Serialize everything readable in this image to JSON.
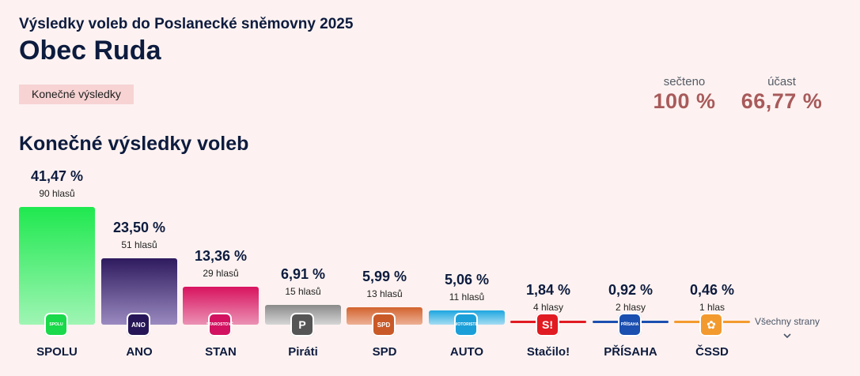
{
  "header": {
    "subtitle": "Výsledky voleb do Poslanecké sněmovny 2025",
    "title": "Obec Ruda",
    "badge": "Konečné výsledky"
  },
  "stats": {
    "counted_label": "sečteno",
    "counted_value": "100 %",
    "turnout_label": "účast",
    "turnout_value": "66,77 %"
  },
  "section_title": "Konečné výsledky voleb",
  "chart_data": {
    "type": "bar",
    "title": "Konečné výsledky voleb",
    "categories": [
      "SPOLU",
      "ANO",
      "STAN",
      "Piráti",
      "SPD",
      "AUTO",
      "Stačilo!",
      "PŘÍSAHA",
      "ČSSD"
    ],
    "values": [
      41.47,
      23.5,
      13.36,
      6.91,
      5.99,
      5.06,
      1.84,
      0.92,
      0.46
    ],
    "unit": "%"
  },
  "parties": [
    {
      "name": "SPOLU",
      "pct": "41,47 %",
      "votes": "90 hlasů",
      "value": 41.47,
      "color_top": "#1fe84f",
      "color_bottom": "#9ff5b4",
      "logo_text": "SPOLU",
      "logo_color": "#1ad94a",
      "icon": "spolu-logo-icon"
    },
    {
      "name": "ANO",
      "pct": "23,50 %",
      "votes": "51 hlasů",
      "value": 23.5,
      "color_top": "#2e1a5e",
      "color_bottom": "#9a8ac0",
      "logo_text": "ANO",
      "logo_color": "#271657",
      "icon": "ano-logo-icon"
    },
    {
      "name": "STAN",
      "pct": "13,36 %",
      "votes": "29 hlasů",
      "value": 13.36,
      "color_top": "#d8135f",
      "color_bottom": "#eb91b4",
      "logo_text": "STAROSTOVÉ",
      "logo_color": "#d21260",
      "icon": "stan-logo-icon"
    },
    {
      "name": "Piráti",
      "pct": "6,91 %",
      "votes": "15 hlasů",
      "value": 6.91,
      "color_top": "#8a8a8a",
      "color_bottom": "#d6d6d6",
      "logo_text": "P",
      "logo_color": "#555555",
      "icon": "pirati-logo-icon"
    },
    {
      "name": "SPD",
      "pct": "5,99 %",
      "votes": "13 hlasů",
      "value": 5.99,
      "color_top": "#d2632e",
      "color_bottom": "#edb195",
      "logo_text": "SPD",
      "logo_color": "#c95a28",
      "icon": "spd-logo-icon"
    },
    {
      "name": "AUTO",
      "pct": "5,06 %",
      "votes": "11 hlasů",
      "value": 5.06,
      "color_top": "#1ea7e0",
      "color_bottom": "#a5dcf3",
      "logo_text": "MOTORISTÉ",
      "logo_color": "#1b9fd8",
      "icon": "auto-logo-icon"
    },
    {
      "name": "Stačilo!",
      "pct": "1,84 %",
      "votes": "4 hlasy",
      "value": 1.84,
      "color_top": "#e11b22",
      "color_bottom": "#f08a8e",
      "logo_text": "S!",
      "logo_color": "#e11b22",
      "icon": "stacilo-logo-icon"
    },
    {
      "name": "PŘÍSAHA",
      "pct": "0,92 %",
      "votes": "2 hlasy",
      "value": 0.92,
      "color_top": "#1b4fb0",
      "color_bottom": "#1b4fb0",
      "logo_text": "PŘÍSAHA",
      "logo_color": "#1b4fb0",
      "icon": "prisaha-logo-icon"
    },
    {
      "name": "ČSSD",
      "pct": "0,46 %",
      "votes": "1 hlas",
      "value": 0.46,
      "color_top": "#f39a2e",
      "color_bottom": "#f7c07a",
      "logo_text": "✿",
      "logo_color": "#f39a2e",
      "icon": "cssd-logo-icon"
    }
  ],
  "all_parties": {
    "label": "Všechny strany",
    "icon": "chevron-down-icon"
  }
}
